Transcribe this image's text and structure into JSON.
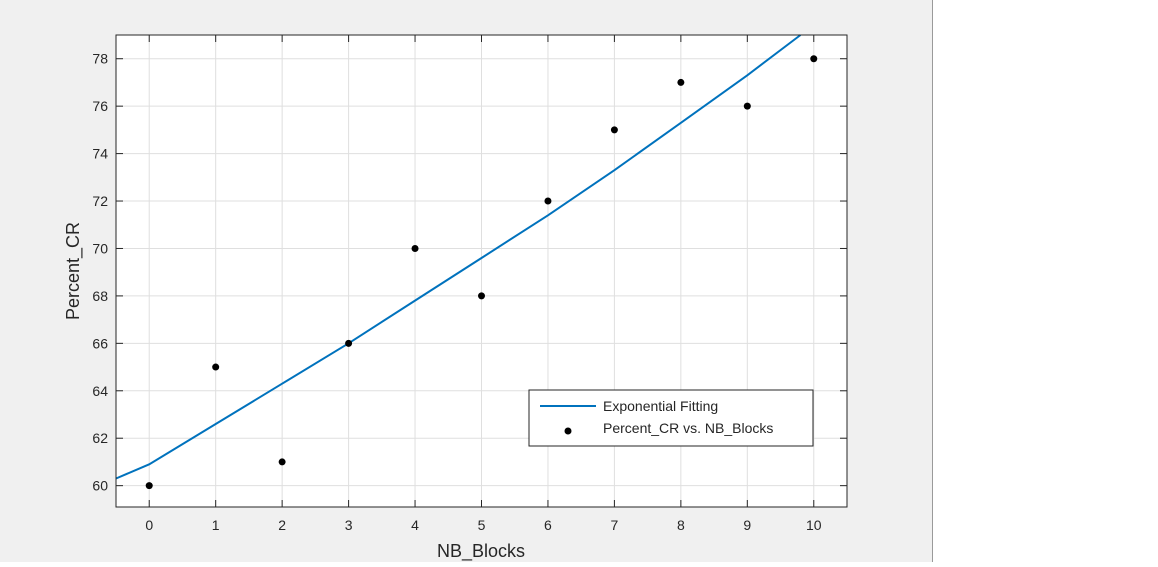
{
  "chart_data": {
    "type": "scatter",
    "title": "",
    "xlabel": "NB_Blocks",
    "ylabel": "Percent_CR",
    "xlim": [
      -0.5,
      10.5
    ],
    "ylim": [
      59.1,
      79.0
    ],
    "xticks": [
      0,
      1,
      2,
      3,
      4,
      5,
      6,
      7,
      8,
      9,
      10
    ],
    "yticks": [
      60,
      62,
      64,
      66,
      68,
      70,
      72,
      74,
      76,
      78
    ],
    "grid": true,
    "legend_position": "lower-right",
    "points": {
      "name": "Percent_CR vs. NB_Blocks",
      "x": [
        0,
        1,
        2,
        3,
        4,
        5,
        6,
        7,
        8,
        9,
        10
      ],
      "y": [
        60,
        65,
        61,
        66,
        70,
        68,
        72,
        75,
        77,
        76,
        78
      ],
      "color": "#000000"
    },
    "fit": {
      "name": "Exponential Fitting",
      "x": [
        -0.5,
        0,
        1,
        2,
        3,
        4,
        5,
        6,
        7,
        8,
        9,
        9.8
      ],
      "y": [
        60.3,
        60.9,
        62.6,
        64.3,
        66.0,
        67.8,
        69.6,
        71.4,
        73.3,
        75.3,
        77.3,
        79.0
      ],
      "color": "#0072bd"
    }
  },
  "colors": {
    "figure_background": "#f0f0f0",
    "axes_background": "#ffffff",
    "grid": "#dfdfdf",
    "axis": "#262626",
    "tick_label": "#262626"
  }
}
